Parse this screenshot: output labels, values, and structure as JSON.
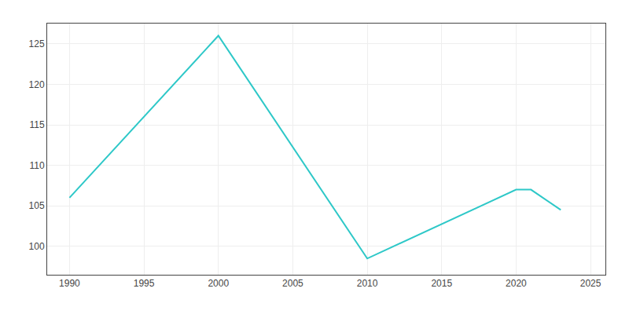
{
  "chart_data": {
    "type": "line",
    "x": [
      1990,
      2000,
      2010,
      2020,
      2021,
      2023
    ],
    "values": [
      106,
      126,
      98.5,
      107,
      107,
      104.5
    ],
    "color": "#2EC8C8",
    "xlim": [
      1988.5,
      2026
    ],
    "ylim": [
      96.5,
      127.5
    ],
    "xticks": [
      1990,
      1995,
      2000,
      2005,
      2010,
      2015,
      2020,
      2025
    ],
    "yticks": [
      100,
      105,
      110,
      115,
      120,
      125
    ],
    "grid": true
  }
}
